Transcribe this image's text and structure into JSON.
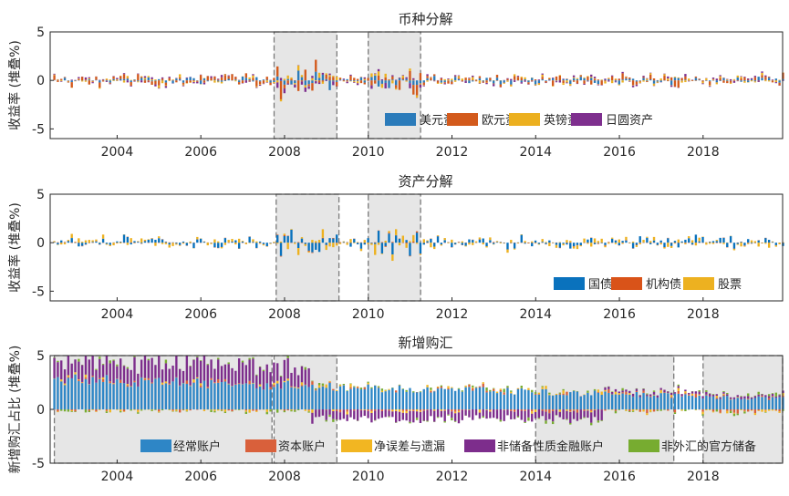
{
  "chart_data": [
    {
      "type": "bar",
      "stacked": true,
      "title": "币种分解",
      "ylabel": "收益率 (堆叠%)",
      "ylim": [
        -6,
        5
      ],
      "yticks": [
        5,
        0,
        -5
      ],
      "xlim": [
        2002.4,
        2019.9
      ],
      "xticks": [
        "2004",
        "2006",
        "2008",
        "2010",
        "2012",
        "2014",
        "2016",
        "2018"
      ],
      "xtick_values": [
        2004,
        2006,
        2008,
        2010,
        2012,
        2014,
        2016,
        2018
      ],
      "legend": [
        "美元资产",
        "欧元资产",
        "英镑资产",
        "日圆资产"
      ],
      "legend_position": "bottom-right",
      "shaded_periods": [
        [
          2007.75,
          2009.25
        ],
        [
          2010.0,
          2011.25
        ]
      ],
      "series": [
        {
          "name": "美元资产",
          "color": "#2b7bba",
          "typical_amplitude": 0.6
        },
        {
          "name": "欧元资产",
          "color": "#d35a1c",
          "typical_amplitude": 0.9
        },
        {
          "name": "英镑资产",
          "color": "#ecb01f",
          "typical_amplitude": 0.35
        },
        {
          "name": "日圆资产",
          "color": "#7e2f8e",
          "typical_amplitude": 0.3
        }
      ],
      "x_start": 2002.5,
      "x_step_years": 0.0833,
      "n_points": 210
    },
    {
      "type": "bar",
      "stacked": true,
      "title": "资产分解",
      "ylabel": "收益率 (堆叠%)",
      "ylim": [
        -6,
        5
      ],
      "yticks": [
        5,
        0,
        -5
      ],
      "xlim": [
        2002.4,
        2019.9
      ],
      "xticks": [
        "2004",
        "2006",
        "2008",
        "2010",
        "2012",
        "2014",
        "2016",
        "2018"
      ],
      "xtick_values": [
        2004,
        2006,
        2008,
        2010,
        2012,
        2014,
        2016,
        2018
      ],
      "legend": [
        "国债",
        "机构债",
        "股票"
      ],
      "legend_position": "bottom-right",
      "shaded_periods": [
        [
          2007.8,
          2009.3
        ],
        [
          2010.0,
          2011.25
        ]
      ],
      "series": [
        {
          "name": "国债",
          "color": "#0a72bd",
          "typical_amplitude": 1.0
        },
        {
          "name": "机构债",
          "color": "#d95319",
          "typical_amplitude": 0.08
        },
        {
          "name": "股票",
          "color": "#edb120",
          "typical_amplitude": 0.6
        }
      ],
      "x_start": 2002.5,
      "x_step_years": 0.0833,
      "n_points": 210
    },
    {
      "type": "bar",
      "stacked": true,
      "title": "新增购汇",
      "ylabel": "新增购汇占比 (堆叠%)",
      "ylim": [
        -5,
        5
      ],
      "yticks": [
        5,
        0,
        -5
      ],
      "xlim": [
        2002.4,
        2019.9
      ],
      "xticks": [
        "2004",
        "2006",
        "2008",
        "2010",
        "2012",
        "2014",
        "2016",
        "2018"
      ],
      "xtick_values": [
        2004,
        2006,
        2008,
        2010,
        2012,
        2014,
        2016,
        2018
      ],
      "legend": [
        "经常账户",
        "资本账户",
        "净误差与遗漏",
        "非储备性质金融账户",
        "非外汇的官方储备"
      ],
      "legend_position": "bottom",
      "shaded_periods": [
        [
          2002.5,
          2007.7
        ],
        [
          2007.75,
          2009.25
        ],
        [
          2014.0,
          2017.3
        ],
        [
          2018.0,
          2019.9
        ]
      ],
      "series": [
        {
          "name": "经常账户",
          "color": "#2e86c6",
          "typical_amplitude": 2.0
        },
        {
          "name": "资本账户",
          "color": "#d9603b",
          "typical_amplitude": 0.5
        },
        {
          "name": "净误差与遗漏",
          "color": "#f2b622",
          "typical_amplitude": 0.4
        },
        {
          "name": "非储备性质金融账户",
          "color": "#7d2d8c",
          "typical_amplitude": 1.2
        },
        {
          "name": "非外汇的官方储备",
          "color": "#77ac30",
          "typical_amplitude": 0.4
        }
      ],
      "x_start": 2002.5,
      "x_step_years": 0.0833,
      "n_points": 210
    }
  ]
}
